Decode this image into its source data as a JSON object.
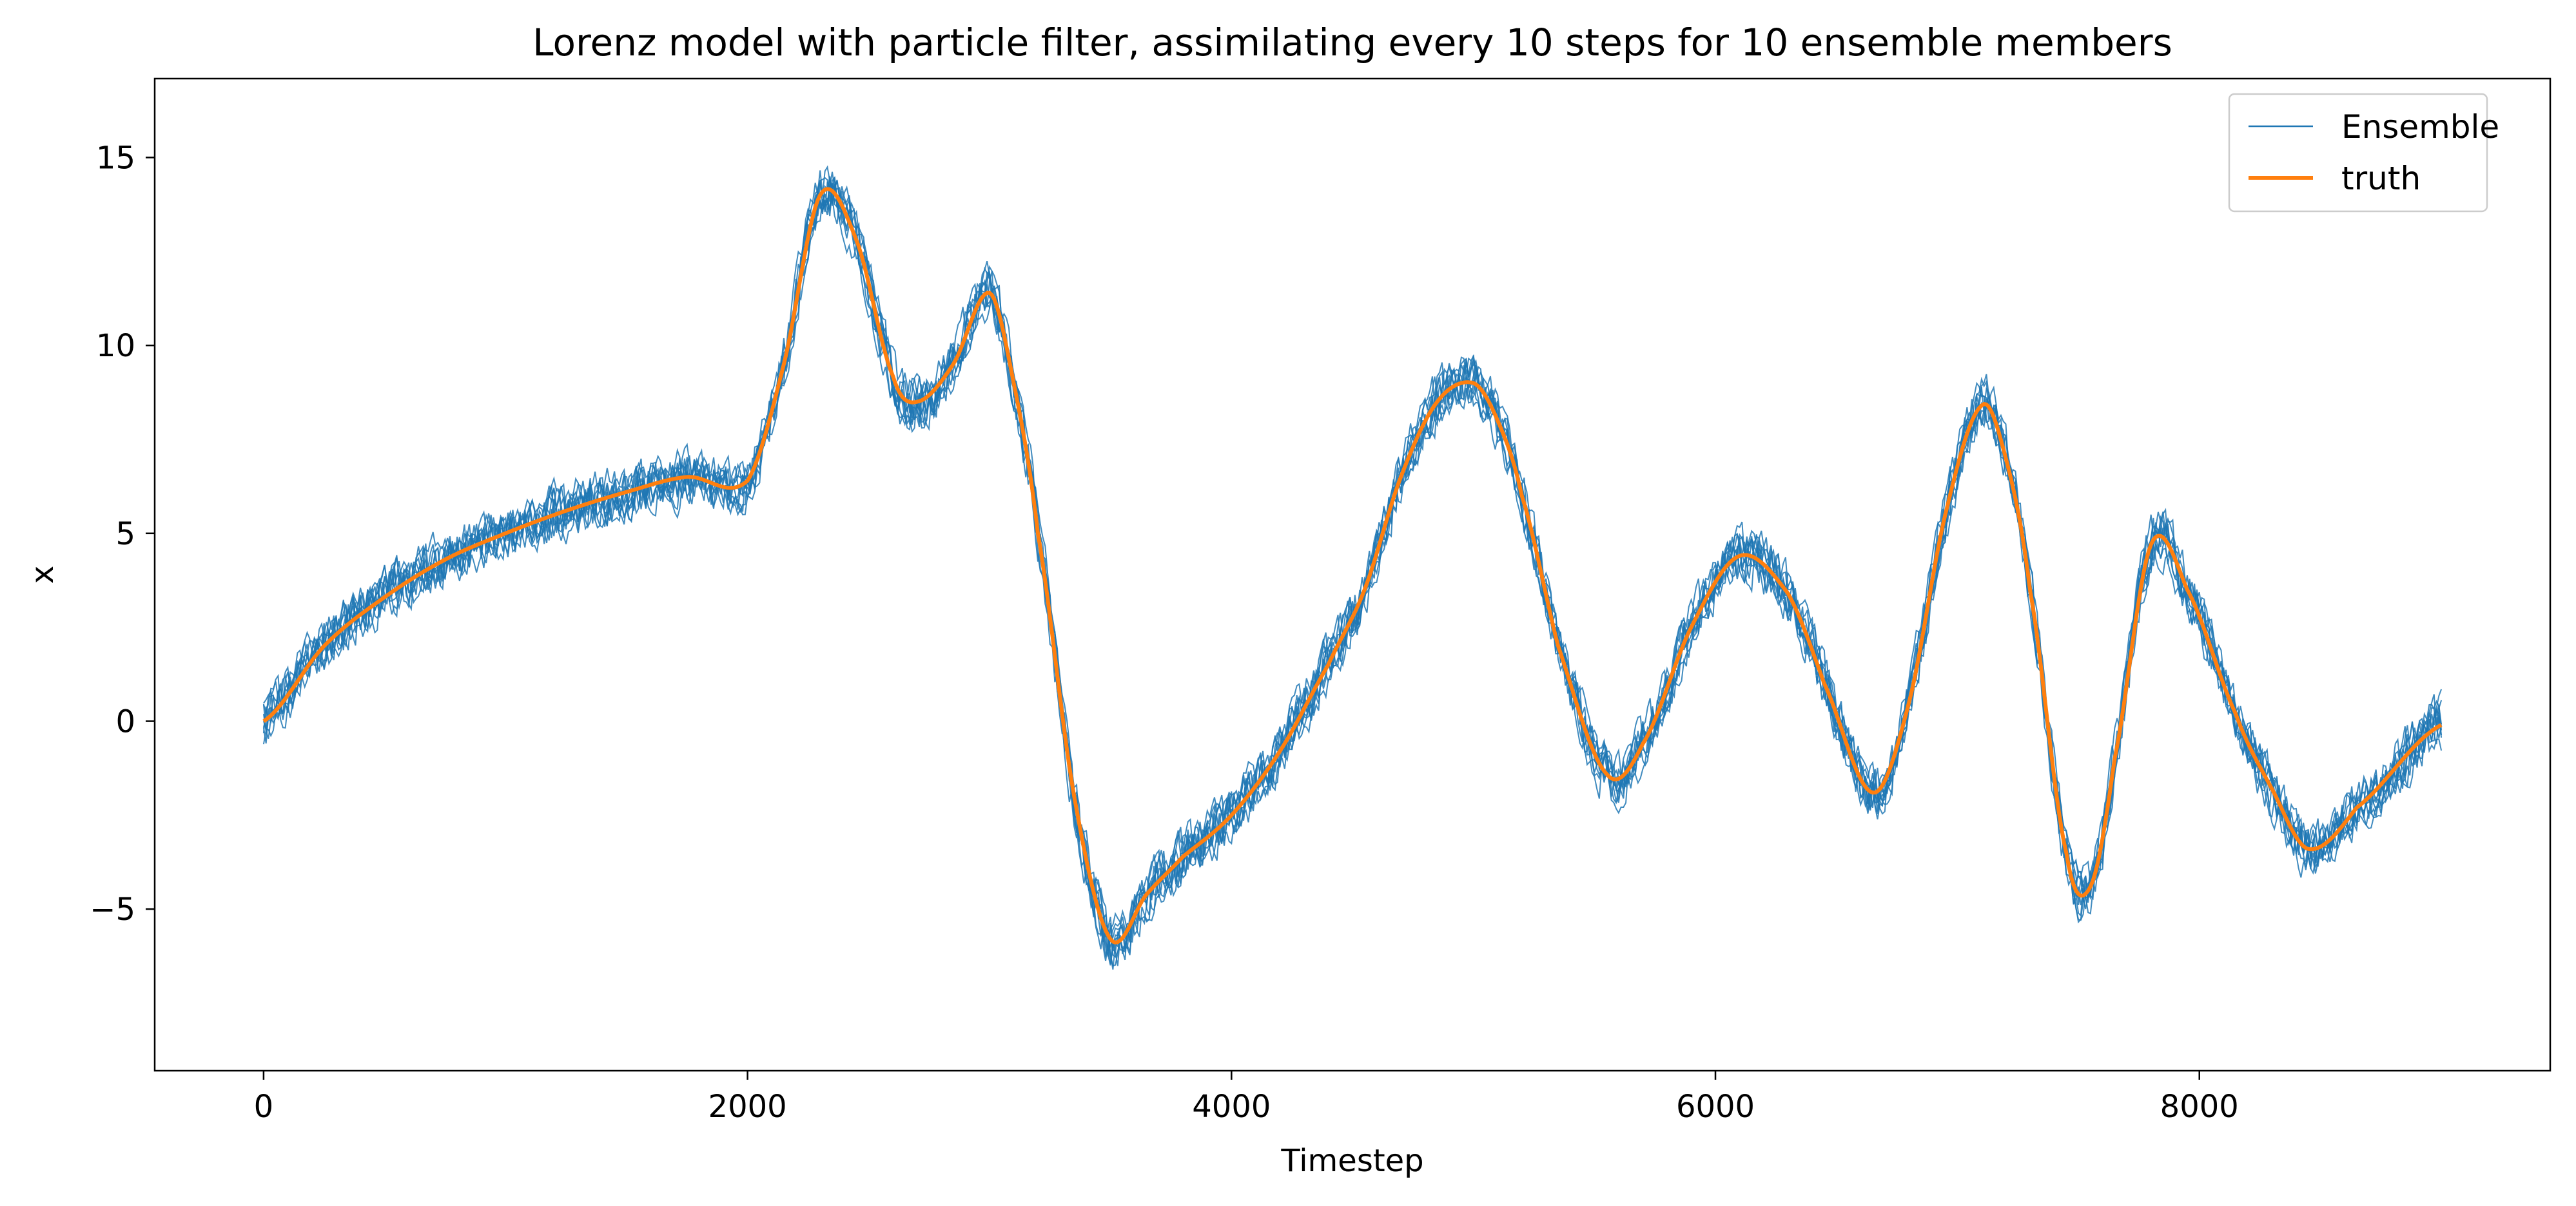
{
  "chart_data": {
    "type": "line",
    "title": "Lorenz model with particle filter, assimilating every 10 steps for 10 ensemble members",
    "xlabel": "Timestep",
    "ylabel": "x",
    "xlim": [
      -450,
      9450
    ],
    "ylim": [
      -9.3,
      17.1
    ],
    "xticks": [
      0,
      2000,
      4000,
      6000,
      8000
    ],
    "yticks": [
      -5,
      0,
      5,
      10,
      15
    ],
    "grid": false,
    "legend_position": "top-right",
    "ensemble_member_count": 10,
    "series": [
      {
        "name": "Ensemble",
        "color": "#1f77b4",
        "role": "ensemble",
        "spread": 1.0,
        "x": [
          0,
          250,
          500,
          750,
          1000,
          1250,
          1500,
          1750,
          2000,
          2150,
          2300,
          2450,
          2600,
          2700,
          2850,
          3000,
          3100,
          3200,
          3350,
          3500,
          3650,
          3800,
          4000,
          4200,
          4400,
          4550,
          4700,
          4850,
          5000,
          5100,
          5200,
          5350,
          5550,
          5700,
          5900,
          6100,
          6300,
          6450,
          6650,
          6800,
          6950,
          7100,
          7200,
          7300,
          7450,
          7550,
          7650,
          7800,
          7950,
          8150,
          8300,
          8450,
          8650,
          9000
        ],
        "y": [
          0,
          2.0,
          3.3,
          4.3,
          5.0,
          5.6,
          6.1,
          6.5,
          6.4,
          9.5,
          14.0,
          12.8,
          9.2,
          8.5,
          9.5,
          11.4,
          9.0,
          5.0,
          -2.0,
          -5.8,
          -4.6,
          -3.6,
          -2.5,
          -0.8,
          1.5,
          3.5,
          6.5,
          8.5,
          9.0,
          8.0,
          6.0,
          2.0,
          -1.4,
          -0.6,
          2.5,
          4.4,
          3.4,
          1.0,
          -1.9,
          0.5,
          5.5,
          8.4,
          7.0,
          3.5,
          -3.5,
          -4.4,
          -1.0,
          4.7,
          3.5,
          0.2,
          -1.8,
          -3.4,
          -2.3,
          -0.1
        ]
      },
      {
        "name": "truth",
        "color": "#ff7f0e",
        "role": "truth",
        "x": [
          0,
          250,
          500,
          750,
          1000,
          1250,
          1500,
          1750,
          2000,
          2150,
          2300,
          2450,
          2600,
          2700,
          2850,
          3000,
          3100,
          3200,
          3350,
          3500,
          3650,
          3800,
          4000,
          4200,
          4400,
          4550,
          4700,
          4850,
          5000,
          5100,
          5200,
          5350,
          5550,
          5700,
          5900,
          6100,
          6300,
          6450,
          6650,
          6800,
          6950,
          7100,
          7200,
          7300,
          7450,
          7550,
          7650,
          7800,
          7950,
          8150,
          8300,
          8450,
          8650,
          9000
        ],
        "y": [
          0,
          2.0,
          3.3,
          4.3,
          5.0,
          5.6,
          6.1,
          6.5,
          6.4,
          9.5,
          14.0,
          12.8,
          9.2,
          8.5,
          9.5,
          11.4,
          9.0,
          5.0,
          -2.0,
          -5.8,
          -4.6,
          -3.6,
          -2.5,
          -0.8,
          1.5,
          3.5,
          6.5,
          8.5,
          9.0,
          8.0,
          6.0,
          2.0,
          -1.4,
          -0.6,
          2.5,
          4.4,
          3.4,
          1.0,
          -1.9,
          0.5,
          5.5,
          8.4,
          7.0,
          3.5,
          -3.5,
          -4.4,
          -1.0,
          4.7,
          3.5,
          0.2,
          -1.8,
          -3.4,
          -2.3,
          -0.1
        ]
      }
    ]
  }
}
